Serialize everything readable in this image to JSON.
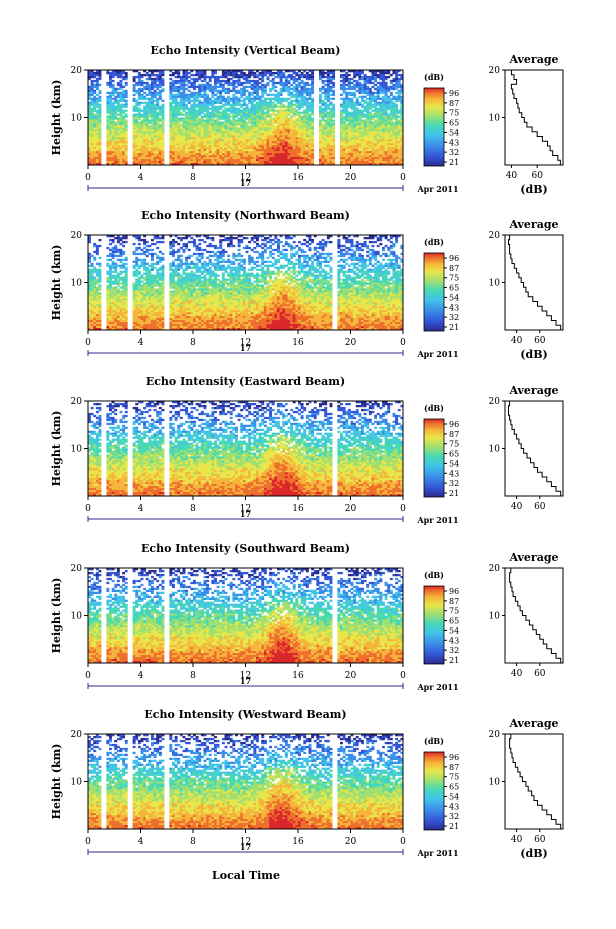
{
  "chart_data": [
    {
      "type": "heatmap",
      "title": "Echo Intensity (Vertical Beam)",
      "ylabel": "Height (km)",
      "ylim": [
        0,
        20
      ],
      "yticks": [
        "20",
        "10"
      ],
      "xticks": [
        "0",
        "4",
        "8",
        "12",
        "16",
        "20",
        "0"
      ],
      "xlim": [
        0,
        24
      ],
      "day_label": "17",
      "month_label": "Apr 2011",
      "colorbar": {
        "unit": "(dB)",
        "ticks": [
          "96",
          "87",
          "75",
          "65",
          "54",
          "43",
          "32",
          "21"
        ]
      },
      "gaps": [
        [
          1.0,
          1.3
        ],
        [
          3.1,
          3.4
        ],
        [
          5.8,
          6.1
        ],
        [
          17.3,
          17.6
        ],
        [
          18.9,
          19.1
        ]
      ],
      "average": {
        "title": "Average",
        "xlabel": "(dB)",
        "xticks": [
          "40",
          "60"
        ],
        "xlim": [
          35,
          80
        ],
        "yticks": [
          "20",
          "10"
        ],
        "ylim": [
          0,
          20
        ],
        "height_km": [
          1,
          2,
          3,
          4,
          5,
          6,
          7,
          8,
          9,
          10,
          11,
          12,
          13,
          14,
          15,
          16,
          17,
          18,
          19,
          20
        ],
        "db": [
          78,
          76,
          72,
          70,
          68,
          64,
          60,
          56,
          52,
          50,
          48,
          46,
          45,
          44,
          42,
          41,
          40,
          44,
          42,
          40
        ]
      }
    },
    {
      "type": "heatmap",
      "title": "Echo Intensity (Northward Beam)",
      "ylabel": "Height (km)",
      "ylim": [
        0,
        20
      ],
      "yticks": [
        "20",
        "10"
      ],
      "xticks": [
        "0",
        "4",
        "8",
        "12",
        "16",
        "20",
        "0"
      ],
      "xlim": [
        0,
        24
      ],
      "day_label": "17",
      "month_label": "Apr 2011",
      "colorbar": {
        "unit": "(dB)",
        "ticks": [
          "96",
          "87",
          "75",
          "65",
          "54",
          "43",
          "32",
          "21"
        ]
      },
      "gaps": [
        [
          1.0,
          1.3
        ],
        [
          3.1,
          3.4
        ],
        [
          5.8,
          6.1
        ],
        [
          18.6,
          19.0
        ]
      ],
      "average": {
        "title": "Average",
        "xlabel": "(dB)",
        "xticks": [
          "40",
          "60"
        ],
        "xlim": [
          30,
          80
        ],
        "yticks": [
          "20",
          "10"
        ],
        "ylim": [
          0,
          20
        ],
        "height_km": [
          1,
          2,
          3,
          4,
          5,
          6,
          7,
          8,
          9,
          10,
          11,
          12,
          13,
          14,
          15,
          16,
          17,
          18,
          19,
          20
        ],
        "db": [
          78,
          74,
          70,
          66,
          62,
          58,
          54,
          50,
          48,
          46,
          44,
          42,
          40,
          38,
          36,
          35,
          34,
          34,
          33,
          34
        ]
      }
    },
    {
      "type": "heatmap",
      "title": "Echo Intensity (Eastward Beam)",
      "ylabel": "Height (km)",
      "ylim": [
        0,
        20
      ],
      "yticks": [
        "20",
        "10"
      ],
      "xticks": [
        "0",
        "4",
        "8",
        "12",
        "16",
        "20",
        "0"
      ],
      "xlim": [
        0,
        24
      ],
      "day_label": "17",
      "month_label": "Apr 2011",
      "colorbar": {
        "unit": "(dB)",
        "ticks": [
          "96",
          "87",
          "75",
          "65",
          "54",
          "43",
          "32",
          "21"
        ]
      },
      "gaps": [
        [
          1.0,
          1.3
        ],
        [
          3.1,
          3.4
        ],
        [
          5.8,
          6.1
        ],
        [
          18.6,
          19.0
        ]
      ],
      "average": {
        "title": "Average",
        "xlabel": "",
        "xticks": [
          "40",
          "60"
        ],
        "xlim": [
          30,
          80
        ],
        "yticks": [
          "20",
          "10"
        ],
        "ylim": [
          0,
          20
        ],
        "height_km": [
          1,
          2,
          3,
          4,
          5,
          6,
          7,
          8,
          9,
          10,
          11,
          12,
          13,
          14,
          15,
          16,
          17,
          18,
          19,
          20
        ],
        "db": [
          78,
          74,
          70,
          66,
          62,
          58,
          55,
          52,
          49,
          46,
          44,
          42,
          40,
          38,
          36,
          35,
          34,
          33,
          33,
          34
        ]
      }
    },
    {
      "type": "heatmap",
      "title": "Echo Intensity (Southward Beam)",
      "ylabel": "Height (km)",
      "ylim": [
        0,
        20
      ],
      "yticks": [
        "20",
        "10"
      ],
      "xticks": [
        "0",
        "4",
        "8",
        "12",
        "16",
        "20",
        "0"
      ],
      "xlim": [
        0,
        24
      ],
      "day_label": "17",
      "month_label": "Apr 2011",
      "colorbar": {
        "unit": "(dB)",
        "ticks": [
          "96",
          "87",
          "75",
          "65",
          "54",
          "43",
          "32",
          "21"
        ]
      },
      "gaps": [
        [
          1.0,
          1.3
        ],
        [
          3.1,
          3.4
        ],
        [
          5.8,
          6.1
        ],
        [
          18.6,
          19.0
        ]
      ],
      "average": {
        "title": "Average",
        "xlabel": "",
        "xticks": [
          "40",
          "60"
        ],
        "xlim": [
          30,
          80
        ],
        "yticks": [
          "20",
          "10"
        ],
        "ylim": [
          0,
          20
        ],
        "height_km": [
          1,
          2,
          3,
          4,
          5,
          6,
          7,
          8,
          9,
          10,
          11,
          12,
          13,
          14,
          15,
          16,
          17,
          18,
          19,
          20
        ],
        "db": [
          78,
          74,
          70,
          66,
          63,
          60,
          57,
          54,
          51,
          48,
          45,
          43,
          41,
          39,
          37,
          36,
          35,
          34,
          34,
          35
        ]
      }
    },
    {
      "type": "heatmap",
      "title": "Echo Intensity (Westward Beam)",
      "ylabel": "Height (km)",
      "xlabel": "Local Time",
      "ylim": [
        0,
        20
      ],
      "yticks": [
        "20",
        "10"
      ],
      "xticks": [
        "0",
        "4",
        "8",
        "12",
        "16",
        "20",
        "0"
      ],
      "xlim": [
        0,
        24
      ],
      "day_label": "17",
      "month_label": "Apr 2011",
      "colorbar": {
        "unit": "(dB)",
        "ticks": [
          "96",
          "87",
          "75",
          "65",
          "54",
          "43",
          "32",
          "21"
        ]
      },
      "gaps": [
        [
          1.0,
          1.3
        ],
        [
          3.1,
          3.4
        ],
        [
          5.8,
          6.1
        ],
        [
          18.6,
          19.0
        ]
      ],
      "average": {
        "title": "Average",
        "xlabel": "(dB)",
        "xticks": [
          "40",
          "60"
        ],
        "xlim": [
          30,
          80
        ],
        "yticks": [
          "20",
          "10"
        ],
        "ylim": [
          0,
          20
        ],
        "height_km": [
          1,
          2,
          3,
          4,
          5,
          6,
          7,
          8,
          9,
          10,
          11,
          12,
          13,
          14,
          15,
          16,
          17,
          18,
          19,
          20
        ],
        "db": [
          78,
          74,
          70,
          66,
          62,
          58,
          55,
          53,
          50,
          48,
          45,
          43,
          41,
          39,
          37,
          36,
          35,
          34,
          34,
          35
        ]
      }
    }
  ],
  "colors": {
    "scale": [
      "#2b2b8c",
      "#3355d6",
      "#3b8ee8",
      "#42c3ea",
      "#47d8b4",
      "#9fe070",
      "#e8e64a",
      "#f5b43a",
      "#ee6e2c",
      "#d9262a"
    ]
  }
}
